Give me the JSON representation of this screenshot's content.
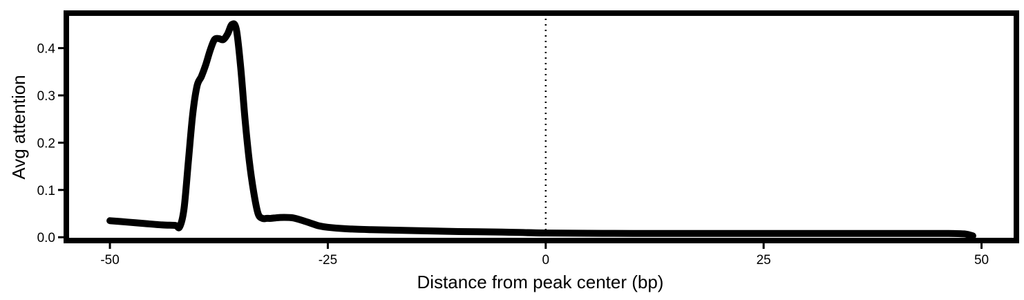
{
  "chart_data": {
    "type": "line",
    "title": "",
    "xlabel": "Distance from peak center (bp)",
    "ylabel": "Avg attention",
    "xlim": [
      -55,
      54
    ],
    "ylim": [
      -0.007,
      0.474
    ],
    "x_ticks": [
      -50,
      -25,
      0,
      25,
      50
    ],
    "x_tick_labels": [
      "-50",
      "-25",
      "0",
      "25",
      "50"
    ],
    "y_ticks": [
      0.0,
      0.1,
      0.2,
      0.3,
      0.4
    ],
    "y_tick_labels": [
      "0.0",
      "0.1",
      "0.2",
      "0.3",
      "0.4"
    ],
    "grid": false,
    "legend": "none",
    "reference_line": {
      "x": 0,
      "style": "dotted"
    },
    "line_color": "#000000",
    "series": [
      {
        "x": [
          -50,
          -48,
          -46,
          -44,
          -42.5,
          -42,
          -41.5,
          -41,
          -40.5,
          -40,
          -39.5,
          -39,
          -38.5,
          -38,
          -37.5,
          -37,
          -36.5,
          -36,
          -35.5,
          -35,
          -34.5,
          -34,
          -33.5,
          -33,
          -32.5,
          -32,
          -31.5,
          -31,
          -30,
          -29,
          -28,
          -27,
          -26,
          -25,
          -23,
          -20,
          -15,
          -10,
          -5,
          0,
          10,
          20,
          30,
          40,
          46,
          48,
          49
        ],
        "y": [
          0.035,
          0.032,
          0.029,
          0.026,
          0.025,
          0.022,
          0.06,
          0.16,
          0.26,
          0.32,
          0.34,
          0.365,
          0.395,
          0.418,
          0.42,
          0.418,
          0.43,
          0.45,
          0.44,
          0.36,
          0.25,
          0.16,
          0.095,
          0.05,
          0.04,
          0.04,
          0.04,
          0.041,
          0.042,
          0.041,
          0.036,
          0.03,
          0.024,
          0.021,
          0.018,
          0.016,
          0.014,
          0.012,
          0.011,
          0.009,
          0.008,
          0.008,
          0.008,
          0.008,
          0.008,
          0.007,
          0.003
        ]
      }
    ]
  }
}
